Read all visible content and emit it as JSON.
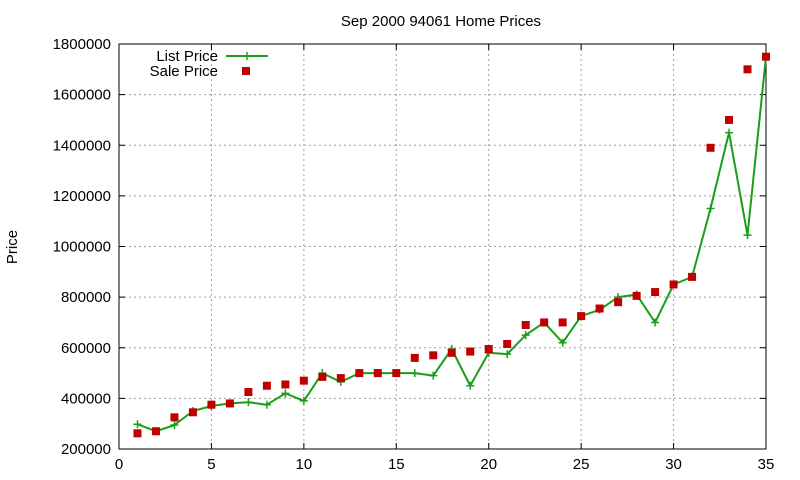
{
  "chart_data": {
    "type": "line",
    "title": "Sep 2000 94061 Home Prices",
    "xlabel": "",
    "ylabel": "Price",
    "xlim": [
      0,
      35
    ],
    "ylim": [
      200000,
      1800000
    ],
    "x_ticks": [
      0,
      5,
      10,
      15,
      20,
      25,
      30,
      35
    ],
    "y_ticks": [
      200000,
      400000,
      600000,
      800000,
      1000000,
      1200000,
      1400000,
      1600000,
      1800000
    ],
    "grid": true,
    "legend_position": "top-left",
    "series": [
      {
        "name": "List Price",
        "style": "line-plus",
        "color": "#1a9e1a",
        "x": [
          1,
          2,
          3,
          4,
          5,
          6,
          7,
          8,
          9,
          10,
          11,
          12,
          13,
          14,
          15,
          16,
          17,
          18,
          19,
          20,
          21,
          22,
          23,
          24,
          25,
          26,
          27,
          28,
          29,
          30,
          31,
          32,
          33,
          34,
          35
        ],
        "values": [
          298000,
          270000,
          295000,
          350000,
          370000,
          380000,
          385000,
          375000,
          420000,
          390000,
          500000,
          465000,
          500000,
          500000,
          500000,
          500000,
          490000,
          595000,
          450000,
          580000,
          575000,
          650000,
          700000,
          620000,
          725000,
          750000,
          800000,
          810000,
          700000,
          850000,
          880000,
          1150000,
          1450000,
          1045000,
          1750000
        ]
      },
      {
        "name": "Sale Price",
        "style": "square",
        "color": "#c00000",
        "x": [
          1,
          2,
          3,
          4,
          5,
          6,
          7,
          8,
          9,
          10,
          11,
          12,
          13,
          14,
          15,
          16,
          17,
          18,
          19,
          20,
          21,
          22,
          23,
          24,
          25,
          26,
          27,
          28,
          29,
          30,
          31,
          32,
          33,
          34,
          35
        ],
        "values": [
          262000,
          270000,
          325000,
          345000,
          375000,
          380000,
          425000,
          450000,
          455000,
          470000,
          485000,
          480000,
          500000,
          500000,
          500000,
          560000,
          570000,
          580000,
          585000,
          595000,
          615000,
          690000,
          700000,
          700000,
          725000,
          755000,
          780000,
          805000,
          820000,
          850000,
          880000,
          1390000,
          1500000,
          1700000,
          1750000
        ]
      }
    ]
  }
}
